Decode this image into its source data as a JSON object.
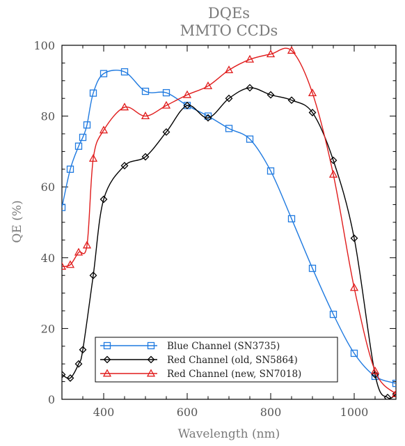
{
  "chart_data": {
    "type": "line",
    "title": "DQEs",
    "subtitle": "MMTO CCDs",
    "xlabel": "Wavelength (nm)",
    "ylabel": "QE (%)",
    "xlim": [
      300,
      1100
    ],
    "ylim": [
      0,
      100
    ],
    "xticks": [
      "400",
      "600",
      "800",
      "1000"
    ],
    "yticks": [
      "0",
      "20",
      "40",
      "60",
      "80",
      "100"
    ],
    "grid": false,
    "legend": "bottom-center",
    "series": [
      {
        "name": "Blue Channel (SN3735)",
        "color": "#1f7ae0",
        "marker": "square",
        "x": [
          300,
          320,
          340,
          350,
          360,
          375,
          400,
          450,
          500,
          550,
          600,
          650,
          700,
          750,
          800,
          850,
          900,
          950,
          1000,
          1050,
          1100
        ],
        "y": [
          54.2,
          65,
          71.5,
          74,
          77.5,
          86.5,
          92,
          92.5,
          87,
          86.6,
          83,
          80,
          76.5,
          73.5,
          64.5,
          51,
          37,
          24,
          13,
          6.5,
          4.5
        ]
      },
      {
        "name": "Red Channel (old, SN5864)",
        "color": "#000000",
        "marker": "diamond",
        "x": [
          300,
          320,
          340,
          350,
          375,
          400,
          450,
          500,
          550,
          600,
          650,
          700,
          750,
          800,
          850,
          900,
          950,
          1000,
          1050,
          1080,
          1100
        ],
        "y": [
          7,
          6,
          10,
          14,
          35,
          56.5,
          66,
          68.5,
          75.5,
          83,
          79.5,
          85,
          88,
          86,
          84.5,
          81,
          67.5,
          45.5,
          7,
          0.5,
          1.5
        ]
      },
      {
        "name": "Red Channel (new, SN7018)",
        "color": "#e01b1b",
        "marker": "triangle",
        "x": [
          300,
          320,
          340,
          360,
          375,
          400,
          450,
          500,
          550,
          600,
          650,
          700,
          750,
          800,
          850,
          900,
          950,
          1000,
          1050,
          1100
        ],
        "y": [
          37.5,
          38,
          41.5,
          43.5,
          68,
          76,
          82.5,
          80,
          83,
          86,
          88.5,
          93,
          96,
          97.5,
          98.5,
          86.5,
          63.5,
          31.5,
          8,
          1.5
        ]
      }
    ]
  }
}
